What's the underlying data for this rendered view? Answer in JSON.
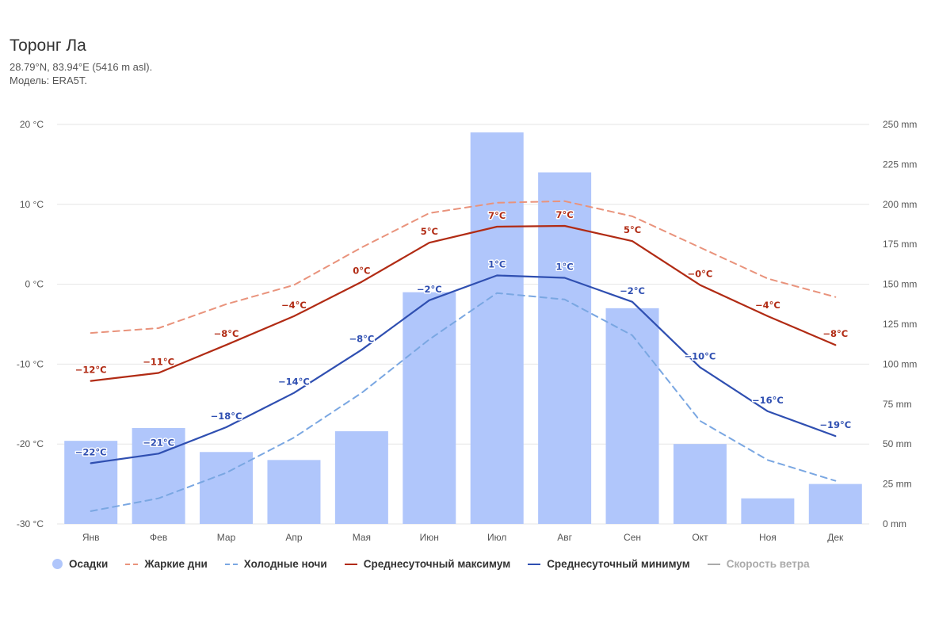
{
  "header": {
    "title": "Торонг Ла",
    "coords": "28.79°N, 83.94°E (5416 m asl).",
    "model": "Модель: ERA5T."
  },
  "colors": {
    "precip": "#b0c6fb",
    "hot_days": "#e9937c",
    "cold_nights": "#7aa7e2",
    "avg_max": "#b12b14",
    "avg_min": "#2f4fb1",
    "wind": "#aaaaaa",
    "grid": "#e6e6e6"
  },
  "legend": [
    {
      "label": "Осадки",
      "symbol": "dot",
      "color_key": "precip",
      "enabled": true
    },
    {
      "label": "Жаркие дни",
      "symbol": "dashed",
      "color_key": "hot_days",
      "enabled": true
    },
    {
      "label": "Холодные ночи",
      "symbol": "dashed",
      "color_key": "cold_nights",
      "enabled": true
    },
    {
      "label": "Среднесуточный максимум",
      "symbol": "solid",
      "color_key": "avg_max",
      "enabled": true
    },
    {
      "label": "Среднесуточный минимум",
      "symbol": "solid",
      "color_key": "avg_min",
      "enabled": true
    },
    {
      "label": "Скорость ветра",
      "symbol": "solid",
      "color_key": "wind",
      "enabled": false
    }
  ],
  "chart_data": {
    "type": "bar",
    "categories": [
      "Янв",
      "Фев",
      "Мар",
      "Апр",
      "Мая",
      "Июн",
      "Июл",
      "Авг",
      "Сен",
      "Окт",
      "Ноя",
      "Дек"
    ],
    "y_left": {
      "min": -30,
      "max": 20,
      "step": 10,
      "tick_labels": [
        "20 °C",
        "10 °C",
        "0 °C",
        "-10 °C",
        "-20 °C",
        "-30 °C"
      ]
    },
    "y_right": {
      "min": 0,
      "max": 250,
      "step": 25,
      "tick_labels": [
        "250 mm",
        "225 mm",
        "200 mm",
        "175 mm",
        "150 mm",
        "125 mm",
        "100 mm",
        "75 mm",
        "50 mm",
        "25 mm",
        "0 mm"
      ]
    },
    "series": [
      {
        "name": "Осадки",
        "type": "bar",
        "axis": "right",
        "unit": "mm",
        "values": [
          52,
          60,
          45,
          40,
          58,
          145,
          245,
          220,
          135,
          50,
          16,
          25
        ]
      },
      {
        "name": "Жаркие дни",
        "type": "line",
        "style": "dashed",
        "axis": "left",
        "unit": "°C",
        "values": [
          -6.1,
          -5.5,
          -2.5,
          -0.1,
          4.6,
          8.9,
          10.2,
          10.4,
          8.5,
          4.6,
          0.7,
          -1.6
        ]
      },
      {
        "name": "Холодные ночи",
        "type": "line",
        "style": "dashed",
        "axis": "left",
        "unit": "°C",
        "values": [
          -28.4,
          -26.8,
          -23.6,
          -19.2,
          -13.6,
          -6.9,
          -1.1,
          -1.9,
          -6.4,
          -17.1,
          -22.0,
          -24.6
        ]
      },
      {
        "name": "Среднесуточный максимум",
        "type": "line",
        "style": "solid",
        "axis": "left",
        "unit": "°C",
        "values": [
          -12.1,
          -11.1,
          -7.6,
          -4.0,
          0.3,
          5.2,
          7.2,
          7.3,
          5.4,
          -0.1,
          -4.0,
          -7.6
        ],
        "data_labels": [
          "-12°C",
          "-11°C",
          "-8°C",
          "-4°C",
          "0°C",
          "5°C",
          "7°C",
          "7°C",
          "5°C",
          "-0°C",
          "-4°C",
          "-8°C"
        ]
      },
      {
        "name": "Среднесуточный минимум",
        "type": "line",
        "style": "solid",
        "axis": "left",
        "unit": "°C",
        "values": [
          -22.4,
          -21.2,
          -17.9,
          -13.6,
          -8.2,
          -2.0,
          1.1,
          0.8,
          -2.2,
          -10.4,
          -15.9,
          -19.0
        ],
        "data_labels": [
          "-22°C",
          "-21°C",
          "-18°C",
          "-14°C",
          "-8°C",
          "-2°C",
          "1°C",
          "1°C",
          "-2°C",
          "-10°C",
          "-16°C",
          "-19°C"
        ]
      }
    ],
    "grid": true,
    "legend_position": "bottom"
  }
}
